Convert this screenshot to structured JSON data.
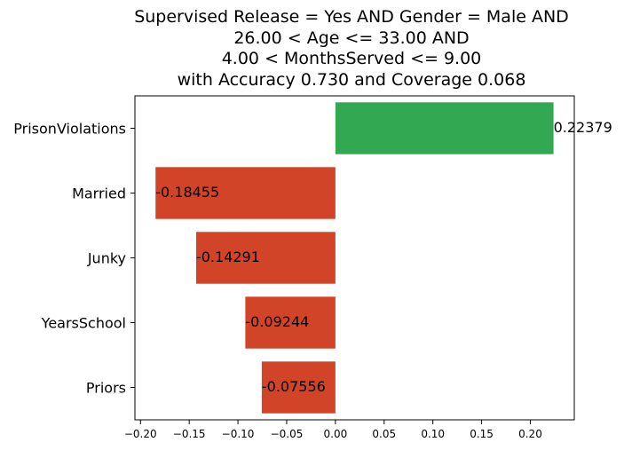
{
  "chart_data": {
    "type": "bar",
    "orientation": "horizontal",
    "title_lines": [
      "Supervised Release = Yes AND Gender = Male AND",
      "26.00 < Age <= 33.00 AND",
      "4.00 < MonthsServed <= 9.00",
      "with Accuracy 0.730 and Coverage 0.068"
    ],
    "categories": [
      "PrisonViolations",
      "Married",
      "Junky",
      "YearsSchool",
      "Priors"
    ],
    "values": [
      0.22379,
      -0.18455,
      -0.14291,
      -0.09244,
      -0.07556
    ],
    "value_labels": [
      "0.22379",
      "-0.18455",
      "-0.14291",
      "-0.09244",
      "-0.07556"
    ],
    "x_ticks": [
      -0.2,
      -0.15,
      -0.1,
      -0.05,
      0.0,
      0.05,
      0.1,
      0.15,
      0.2
    ],
    "x_tick_labels": [
      "−0.20",
      "−0.15",
      "−0.10",
      "−0.05",
      "0.00",
      "0.05",
      "0.10",
      "0.15",
      "0.20"
    ],
    "xlim": [
      -0.2057,
      0.2451
    ],
    "xlabel": "",
    "ylabel": "",
    "grid": false,
    "colors": {
      "positive": "#33a853",
      "negative": "#d14427"
    }
  }
}
